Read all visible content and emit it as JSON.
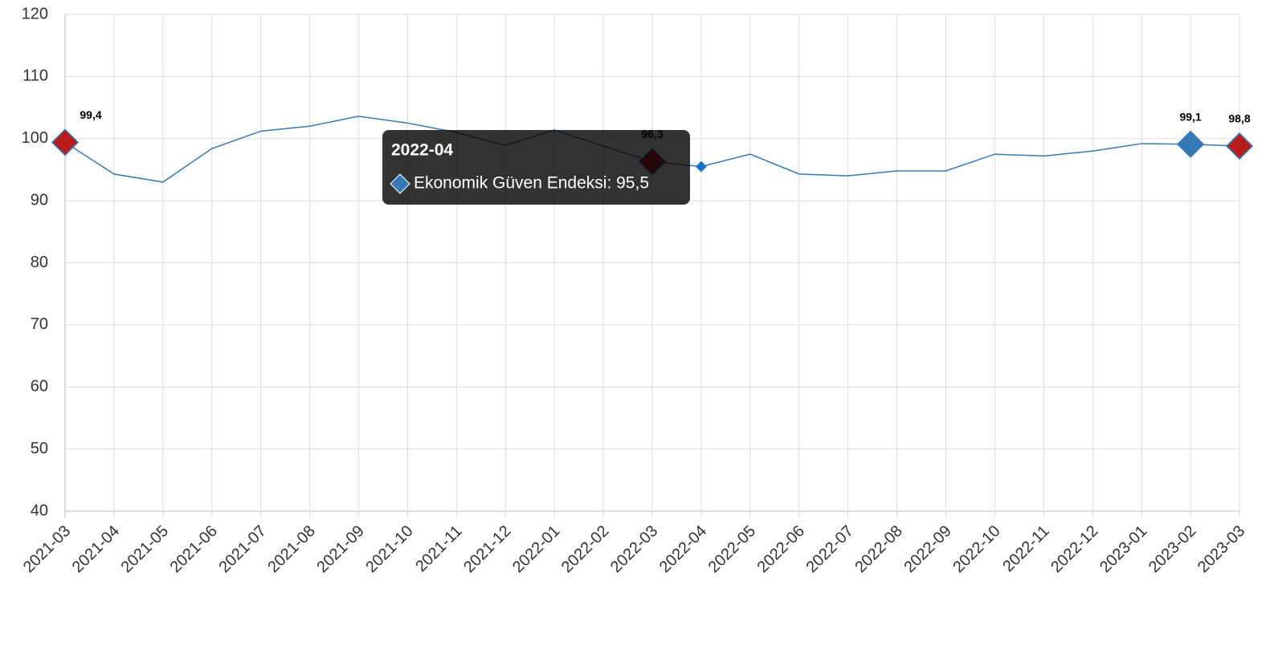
{
  "chart_data": {
    "type": "line",
    "categories": [
      "2021-03",
      "2021-04",
      "2021-05",
      "2021-06",
      "2021-07",
      "2021-08",
      "2021-09",
      "2021-10",
      "2021-11",
      "2021-12",
      "2022-01",
      "2022-02",
      "2022-03",
      "2022-04",
      "2022-05",
      "2022-06",
      "2022-07",
      "2022-08",
      "2022-09",
      "2022-10",
      "2022-11",
      "2022-12",
      "2023-01",
      "2023-02",
      "2023-03"
    ],
    "series": [
      {
        "name": "Ekonomik Güven Endeksi",
        "color": "#337ab7",
        "values": [
          99.4,
          94.3,
          93.0,
          98.4,
          101.2,
          102.0,
          103.6,
          102.5,
          101.0,
          98.9,
          101.4,
          98.8,
          96.3,
          95.5,
          97.5,
          94.3,
          94.0,
          94.8,
          94.8,
          97.5,
          97.2,
          98.0,
          99.2,
          99.1,
          98.8
        ],
        "value_labels": [
          "99,4",
          null,
          null,
          null,
          null,
          null,
          null,
          null,
          null,
          null,
          null,
          null,
          "96,3",
          null,
          null,
          null,
          null,
          null,
          null,
          null,
          null,
          null,
          null,
          "99,1",
          "98,8"
        ],
        "point_colors": [
          "#b71c1c",
          null,
          null,
          null,
          null,
          null,
          null,
          null,
          null,
          null,
          null,
          null,
          "#b71c1c",
          null,
          null,
          null,
          null,
          null,
          null,
          null,
          null,
          null,
          null,
          "#337ab7",
          "#b71c1c"
        ]
      }
    ],
    "ylim": [
      40,
      120
    ],
    "yticks": [
      40,
      50,
      60,
      70,
      80,
      90,
      100,
      110,
      120
    ],
    "grid": true,
    "tooltip": {
      "title": "2022-04",
      "text": "Ekonomik Güven Endeksi: 95,5",
      "color": "#337ab7"
    }
  }
}
